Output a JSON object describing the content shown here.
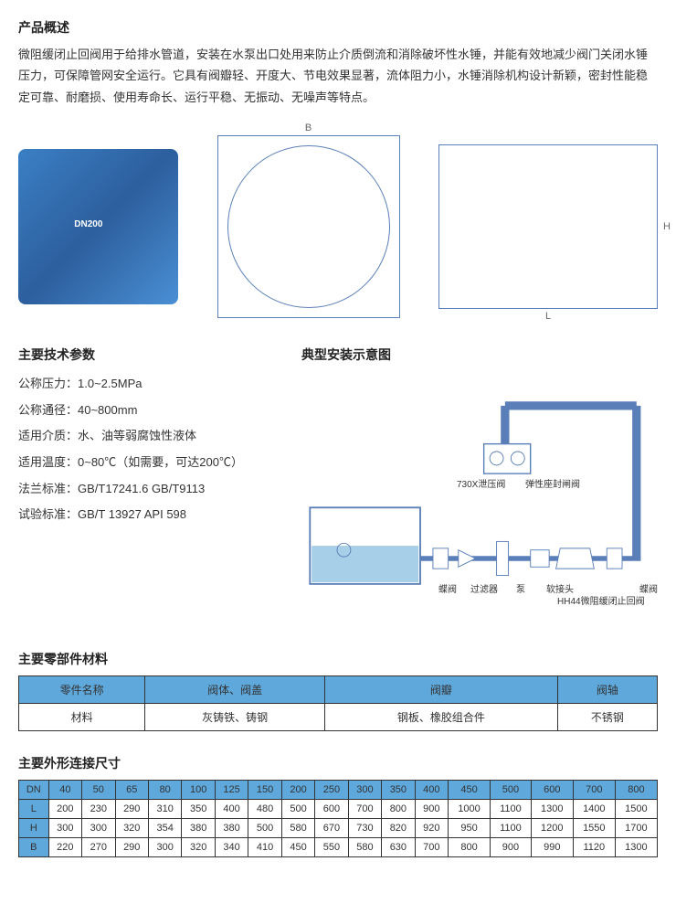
{
  "overview": {
    "title": "产品概述",
    "text": "微阻缓闭止回阀用于给排水管道，安装在水泵出口处用来防止介质倒流和消除破坏性水锤，并能有效地减少阀门关闭水锤压力，可保障管网安全运行。它具有阀瓣轻、开度大、节电效果显著，流体阻力小，水锤消除机构设计新颖，密封性能稳定可靠、耐磨损、使用寿命长、运行平稳、无振动、无噪声等特点。"
  },
  "specs": {
    "title": "主要技术参数",
    "lines": [
      "公称压力：1.0~2.5MPa",
      "公称通径：40~800mm",
      "适用介质：水、油等弱腐蚀性液体",
      "适用温度：0~80℃（如需要，可达200℃）",
      "法兰标准：GB/T17241.6  GB/T9113",
      "试验标准：GB/T 13927  API 598"
    ]
  },
  "install": {
    "title": "典型安装示意图",
    "labels": {
      "l1": "730X泄压阀",
      "l2": "弹性座封闸阀",
      "l3": "蝶阀",
      "l4": "过滤器",
      "l5": "泵",
      "l6": "软接头",
      "l7": "HH44微阻缓闭止回阀",
      "l8": "蝶阀"
    }
  },
  "materials": {
    "title": "主要零部件材料",
    "headers": [
      "零件名称",
      "阀体、阀盖",
      "阀瓣",
      "阀轴"
    ],
    "row_label": "材料",
    "row": [
      "灰铸铁、铸钢",
      "钢板、橡胶组合件",
      "不锈钢"
    ]
  },
  "dimensions": {
    "title": "主要外形连接尺寸",
    "dn_label": "DN",
    "dn": [
      "40",
      "50",
      "65",
      "80",
      "100",
      "125",
      "150",
      "200",
      "250",
      "300",
      "350",
      "400",
      "450",
      "500",
      "600",
      "700",
      "800"
    ],
    "rows": [
      {
        "label": "L",
        "vals": [
          "200",
          "230",
          "290",
          "310",
          "350",
          "400",
          "480",
          "500",
          "600",
          "700",
          "800",
          "900",
          "1000",
          "1100",
          "1300",
          "1400",
          "1500"
        ]
      },
      {
        "label": "H",
        "vals": [
          "300",
          "300",
          "320",
          "354",
          "380",
          "380",
          "500",
          "580",
          "670",
          "730",
          "820",
          "920",
          "950",
          "1100",
          "1200",
          "1550",
          "1700"
        ]
      },
      {
        "label": "B",
        "vals": [
          "220",
          "270",
          "290",
          "300",
          "320",
          "340",
          "410",
          "450",
          "550",
          "580",
          "630",
          "700",
          "800",
          "900",
          "990",
          "1120",
          "1300"
        ]
      }
    ]
  },
  "drawing_labels": {
    "b": "B",
    "h": "H",
    "l": "L"
  },
  "colors": {
    "table_header_bg": "#5fa8dc",
    "border": "#333333",
    "diagram_line": "#5a7fb8",
    "water_fill": "#a8cfe8"
  }
}
